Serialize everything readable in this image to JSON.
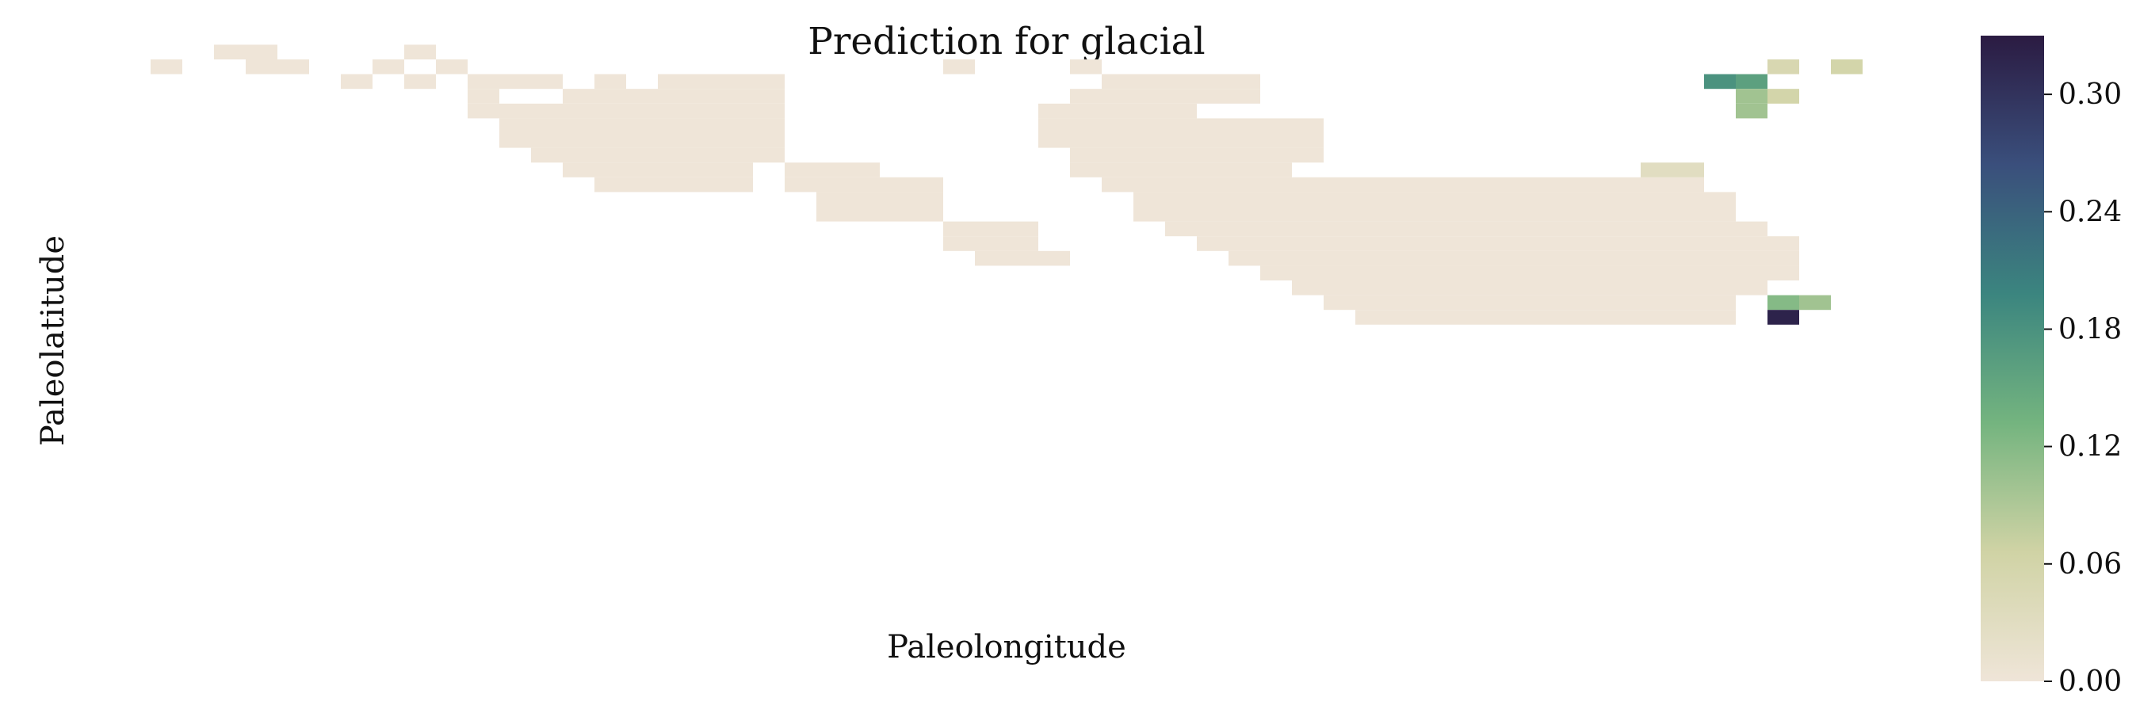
{
  "chart_data": {
    "type": "heatmap",
    "title": "Prediction for glacial",
    "xlabel": "Paleolongitude",
    "ylabel": "Paleolatitude",
    "value_range": [
      0,
      0.33
    ],
    "colorbar": {
      "ticks": [
        0.0,
        0.06,
        0.12,
        0.18,
        0.24,
        0.3
      ],
      "tick_labels": [
        "0.00",
        "0.06",
        "0.12",
        "0.18",
        "0.24",
        "0.30"
      ],
      "colors": [
        "#efe5d8",
        "#d0d3a5",
        "#74b47f",
        "#3b857f",
        "#3a4f7c",
        "#2b1b42"
      ]
    },
    "grid": false,
    "cells": [
      [
        1,
        17,
        0
      ],
      [
        3,
        18,
        0
      ],
      [
        4,
        17,
        0
      ],
      [
        4,
        18,
        0
      ],
      [
        5,
        17,
        0
      ],
      [
        8,
        17,
        0
      ],
      [
        9,
        18,
        0
      ],
      [
        10,
        17,
        0
      ],
      [
        26,
        17,
        0
      ],
      [
        7,
        16,
        0
      ],
      [
        9,
        16,
        0
      ],
      [
        11,
        16,
        0
      ],
      [
        12,
        16,
        0
      ],
      [
        13,
        16,
        0
      ],
      [
        15,
        16,
        0
      ],
      [
        17,
        16,
        0
      ],
      [
        18,
        16,
        0
      ],
      [
        19,
        16,
        0
      ],
      [
        20,
        16,
        0
      ],
      [
        11,
        15,
        0
      ],
      [
        14,
        15,
        0
      ],
      [
        15,
        15,
        0
      ],
      [
        16,
        15,
        0
      ],
      [
        17,
        15,
        0
      ],
      [
        18,
        15,
        0
      ],
      [
        19,
        15,
        0
      ],
      [
        20,
        15,
        0
      ],
      [
        11,
        14,
        0
      ],
      [
        12,
        14,
        0
      ],
      [
        13,
        14,
        0
      ],
      [
        14,
        14,
        0
      ],
      [
        15,
        14,
        0
      ],
      [
        16,
        14,
        0
      ],
      [
        17,
        14,
        0
      ],
      [
        18,
        14,
        0
      ],
      [
        19,
        14,
        0
      ],
      [
        20,
        14,
        0
      ],
      [
        12,
        13,
        0
      ],
      [
        13,
        13,
        0
      ],
      [
        14,
        13,
        0
      ],
      [
        15,
        13,
        0
      ],
      [
        16,
        13,
        0
      ],
      [
        17,
        13,
        0
      ],
      [
        18,
        13,
        0
      ],
      [
        19,
        13,
        0
      ],
      [
        20,
        13,
        0
      ],
      [
        12,
        12,
        0
      ],
      [
        13,
        12,
        0
      ],
      [
        14,
        12,
        0
      ],
      [
        15,
        12,
        0
      ],
      [
        16,
        12,
        0
      ],
      [
        17,
        12,
        0
      ],
      [
        18,
        12,
        0
      ],
      [
        19,
        12,
        0
      ],
      [
        20,
        12,
        0
      ],
      [
        13,
        11,
        0
      ],
      [
        14,
        11,
        0
      ],
      [
        15,
        11,
        0
      ],
      [
        16,
        11,
        0
      ],
      [
        17,
        11,
        0
      ],
      [
        18,
        11,
        0
      ],
      [
        19,
        11,
        0
      ],
      [
        20,
        11,
        0
      ],
      [
        14,
        10,
        0
      ],
      [
        15,
        10,
        0
      ],
      [
        16,
        10,
        0
      ],
      [
        17,
        10,
        0
      ],
      [
        18,
        10,
        0
      ],
      [
        19,
        10,
        0
      ],
      [
        15,
        9,
        0
      ],
      [
        16,
        9,
        0
      ],
      [
        17,
        9,
        0
      ],
      [
        18,
        9,
        0
      ],
      [
        19,
        9,
        0
      ],
      [
        21,
        10,
        0
      ],
      [
        22,
        10,
        0
      ],
      [
        23,
        10,
        0
      ],
      [
        21,
        9,
        0
      ],
      [
        22,
        9,
        0
      ],
      [
        23,
        9,
        0
      ],
      [
        24,
        9,
        0
      ],
      [
        25,
        9,
        0
      ],
      [
        22,
        8,
        0
      ],
      [
        23,
        8,
        0
      ],
      [
        24,
        8,
        0
      ],
      [
        25,
        8,
        0
      ],
      [
        22,
        7,
        0
      ],
      [
        23,
        7,
        0
      ],
      [
        24,
        7,
        0
      ],
      [
        25,
        7,
        0
      ],
      [
        26,
        6,
        0
      ],
      [
        27,
        6,
        0
      ],
      [
        28,
        6,
        0
      ],
      [
        26,
        5,
        0
      ],
      [
        27,
        5,
        0
      ],
      [
        28,
        5,
        0
      ],
      [
        27,
        4,
        0
      ],
      [
        28,
        4,
        0
      ],
      [
        29,
        4,
        0
      ],
      [
        30,
        17,
        0
      ],
      [
        31,
        16,
        0
      ],
      [
        32,
        16,
        0
      ],
      [
        33,
        16,
        0
      ],
      [
        34,
        16,
        0
      ],
      [
        35,
        16,
        0
      ],
      [
        30,
        15,
        0
      ],
      [
        31,
        15,
        0
      ],
      [
        32,
        15,
        0
      ],
      [
        33,
        15,
        0
      ],
      [
        34,
        15,
        0
      ],
      [
        35,
        15,
        0
      ],
      [
        29,
        14,
        0
      ],
      [
        30,
        14,
        0
      ],
      [
        31,
        14,
        0
      ],
      [
        32,
        14,
        0
      ],
      [
        33,
        14,
        0
      ],
      [
        29,
        13,
        0
      ],
      [
        30,
        13,
        0
      ],
      [
        31,
        13,
        0
      ],
      [
        32,
        13,
        0
      ],
      [
        33,
        13,
        0
      ],
      [
        34,
        13,
        0
      ],
      [
        35,
        13,
        0
      ],
      [
        36,
        13,
        0
      ],
      [
        37,
        13,
        0
      ],
      [
        29,
        12,
        0
      ],
      [
        30,
        12,
        0
      ],
      [
        31,
        12,
        0
      ],
      [
        32,
        12,
        0
      ],
      [
        33,
        12,
        0
      ],
      [
        34,
        12,
        0
      ],
      [
        35,
        12,
        0
      ],
      [
        36,
        12,
        0
      ],
      [
        37,
        12,
        0
      ],
      [
        30,
        11,
        0
      ],
      [
        31,
        11,
        0
      ],
      [
        32,
        11,
        0
      ],
      [
        33,
        11,
        0
      ],
      [
        34,
        11,
        0
      ],
      [
        35,
        11,
        0
      ],
      [
        36,
        11,
        0
      ],
      [
        37,
        11,
        0
      ],
      [
        30,
        10,
        0
      ],
      [
        31,
        10,
        0
      ],
      [
        32,
        10,
        0
      ],
      [
        33,
        10,
        0
      ],
      [
        34,
        10,
        0
      ],
      [
        35,
        10,
        0
      ],
      [
        36,
        10,
        0
      ],
      [
        31,
        9,
        0
      ],
      [
        32,
        9,
        0
      ],
      [
        33,
        9,
        0
      ],
      [
        34,
        9,
        0
      ],
      [
        35,
        9,
        0
      ],
      [
        36,
        9,
        0
      ],
      [
        37,
        9,
        0
      ],
      [
        38,
        9,
        0
      ],
      [
        39,
        9,
        0
      ],
      [
        40,
        9,
        0
      ],
      [
        41,
        9,
        0
      ],
      [
        42,
        9,
        0
      ],
      [
        43,
        9,
        0
      ],
      [
        44,
        9,
        0
      ],
      [
        45,
        9,
        0
      ],
      [
        46,
        9,
        0
      ],
      [
        47,
        9,
        0
      ],
      [
        48,
        9,
        0
      ],
      [
        49,
        9,
        0
      ],
      [
        32,
        8,
        0
      ],
      [
        33,
        8,
        0
      ],
      [
        34,
        8,
        0
      ],
      [
        35,
        8,
        0
      ],
      [
        36,
        8,
        0
      ],
      [
        37,
        8,
        0
      ],
      [
        38,
        8,
        0
      ],
      [
        39,
        8,
        0
      ],
      [
        40,
        8,
        0
      ],
      [
        41,
        8,
        0
      ],
      [
        42,
        8,
        0
      ],
      [
        43,
        8,
        0
      ],
      [
        44,
        8,
        0
      ],
      [
        45,
        8,
        0
      ],
      [
        46,
        8,
        0
      ],
      [
        47,
        8,
        0
      ],
      [
        48,
        8,
        0
      ],
      [
        49,
        8,
        0
      ],
      [
        50,
        8,
        0
      ],
      [
        32,
        7,
        0
      ],
      [
        33,
        7,
        0
      ],
      [
        34,
        7,
        0
      ],
      [
        35,
        7,
        0
      ],
      [
        36,
        7,
        0
      ],
      [
        37,
        7,
        0
      ],
      [
        38,
        7,
        0
      ],
      [
        39,
        7,
        0
      ],
      [
        40,
        7,
        0
      ],
      [
        41,
        7,
        0
      ],
      [
        42,
        7,
        0
      ],
      [
        43,
        7,
        0
      ],
      [
        44,
        7,
        0
      ],
      [
        45,
        7,
        0
      ],
      [
        46,
        7,
        0
      ],
      [
        47,
        7,
        0
      ],
      [
        48,
        7,
        0
      ],
      [
        49,
        7,
        0
      ],
      [
        50,
        7,
        0
      ],
      [
        33,
        6,
        0
      ],
      [
        34,
        6,
        0
      ],
      [
        35,
        6,
        0
      ],
      [
        36,
        6,
        0
      ],
      [
        37,
        6,
        0
      ],
      [
        38,
        6,
        0
      ],
      [
        39,
        6,
        0
      ],
      [
        40,
        6,
        0
      ],
      [
        41,
        6,
        0
      ],
      [
        42,
        6,
        0
      ],
      [
        43,
        6,
        0
      ],
      [
        44,
        6,
        0
      ],
      [
        45,
        6,
        0
      ],
      [
        46,
        6,
        0
      ],
      [
        47,
        6,
        0
      ],
      [
        48,
        6,
        0
      ],
      [
        49,
        6,
        0
      ],
      [
        50,
        6,
        0
      ],
      [
        51,
        6,
        0
      ],
      [
        34,
        5,
        0
      ],
      [
        35,
        5,
        0
      ],
      [
        36,
        5,
        0
      ],
      [
        37,
        5,
        0
      ],
      [
        38,
        5,
        0
      ],
      [
        39,
        5,
        0
      ],
      [
        40,
        5,
        0
      ],
      [
        41,
        5,
        0
      ],
      [
        42,
        5,
        0
      ],
      [
        43,
        5,
        0
      ],
      [
        44,
        5,
        0
      ],
      [
        45,
        5,
        0
      ],
      [
        46,
        5,
        0
      ],
      [
        47,
        5,
        0
      ],
      [
        48,
        5,
        0
      ],
      [
        49,
        5,
        0
      ],
      [
        50,
        5,
        0
      ],
      [
        51,
        5,
        0
      ],
      [
        52,
        5,
        0
      ],
      [
        35,
        4,
        0
      ],
      [
        36,
        4,
        0
      ],
      [
        37,
        4,
        0
      ],
      [
        38,
        4,
        0
      ],
      [
        39,
        4,
        0
      ],
      [
        40,
        4,
        0
      ],
      [
        41,
        4,
        0
      ],
      [
        42,
        4,
        0
      ],
      [
        43,
        4,
        0
      ],
      [
        44,
        4,
        0
      ],
      [
        45,
        4,
        0
      ],
      [
        46,
        4,
        0
      ],
      [
        47,
        4,
        0
      ],
      [
        48,
        4,
        0
      ],
      [
        49,
        4,
        0
      ],
      [
        50,
        4,
        0
      ],
      [
        51,
        4,
        0
      ],
      [
        52,
        4,
        0
      ],
      [
        36,
        3,
        0
      ],
      [
        37,
        3,
        0
      ],
      [
        38,
        3,
        0
      ],
      [
        39,
        3,
        0
      ],
      [
        40,
        3,
        0
      ],
      [
        41,
        3,
        0
      ],
      [
        42,
        3,
        0
      ],
      [
        43,
        3,
        0
      ],
      [
        44,
        3,
        0
      ],
      [
        45,
        3,
        0
      ],
      [
        46,
        3,
        0
      ],
      [
        47,
        3,
        0
      ],
      [
        48,
        3,
        0
      ],
      [
        49,
        3,
        0
      ],
      [
        50,
        3,
        0
      ],
      [
        51,
        3,
        0
      ],
      [
        52,
        3,
        0
      ],
      [
        37,
        2,
        0
      ],
      [
        38,
        2,
        0
      ],
      [
        39,
        2,
        0
      ],
      [
        40,
        2,
        0
      ],
      [
        41,
        2,
        0
      ],
      [
        42,
        2,
        0
      ],
      [
        43,
        2,
        0
      ],
      [
        44,
        2,
        0
      ],
      [
        45,
        2,
        0
      ],
      [
        46,
        2,
        0
      ],
      [
        47,
        2,
        0
      ],
      [
        48,
        2,
        0
      ],
      [
        49,
        2,
        0
      ],
      [
        50,
        2,
        0
      ],
      [
        51,
        2,
        0
      ],
      [
        38,
        1,
        0
      ],
      [
        39,
        1,
        0
      ],
      [
        40,
        1,
        0
      ],
      [
        41,
        1,
        0
      ],
      [
        42,
        1,
        0
      ],
      [
        43,
        1,
        0
      ],
      [
        44,
        1,
        0
      ],
      [
        45,
        1,
        0
      ],
      [
        46,
        1,
        0
      ],
      [
        47,
        1,
        0
      ],
      [
        48,
        1,
        0
      ],
      [
        49,
        1,
        0
      ],
      [
        50,
        1,
        0
      ],
      [
        39,
        0,
        0
      ],
      [
        40,
        0,
        0
      ],
      [
        41,
        0,
        0
      ],
      [
        42,
        0,
        0
      ],
      [
        43,
        0,
        0
      ],
      [
        44,
        0,
        0
      ],
      [
        45,
        0,
        0
      ],
      [
        46,
        0,
        0
      ],
      [
        47,
        0,
        0
      ],
      [
        48,
        0,
        0
      ],
      [
        49,
        0,
        0
      ],
      [
        50,
        0,
        0
      ],
      [
        52,
        17,
        0.05
      ],
      [
        54,
        17,
        0.06
      ],
      [
        50,
        16,
        0.18
      ],
      [
        51,
        16,
        0.16
      ],
      [
        51,
        15,
        0.1
      ],
      [
        52,
        15,
        0.06
      ],
      [
        51,
        14,
        0.1
      ],
      [
        48,
        10,
        0.03
      ],
      [
        49,
        10,
        0.03
      ],
      [
        52,
        1,
        0.12
      ],
      [
        53,
        1,
        0.1
      ],
      [
        52,
        0,
        0.32
      ]
    ]
  }
}
